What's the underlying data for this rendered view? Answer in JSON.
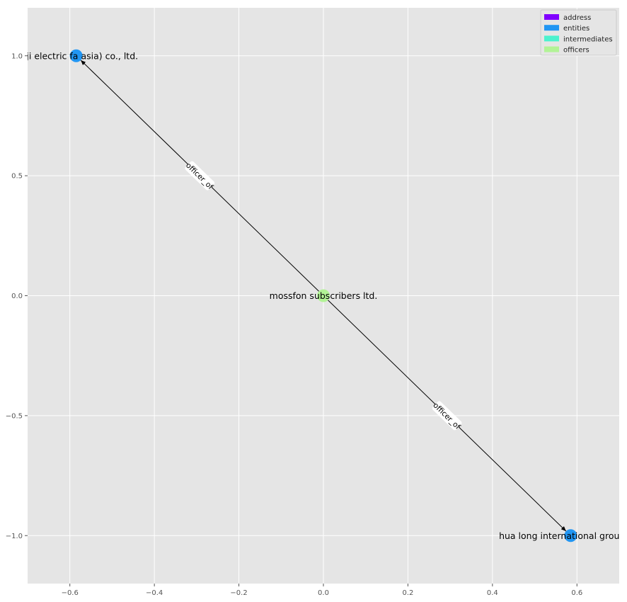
{
  "chart_data": {
    "type": "network",
    "title": "",
    "xlabel": "",
    "ylabel": "",
    "xlim": [
      -0.7,
      0.7
    ],
    "ylim": [
      -1.2,
      1.2
    ],
    "grid": true,
    "x_ticks": [
      -0.6,
      -0.4,
      -0.2,
      0.0,
      0.2,
      0.4,
      0.6
    ],
    "y_ticks": [
      1.0,
      0.5,
      0.0,
      -0.5,
      -1.0
    ],
    "x_tick_labels": [
      "−0.6",
      "−0.4",
      "−0.2",
      "0.0",
      "0.2",
      "0.4",
      "0.6"
    ],
    "y_tick_labels": [
      "1.0",
      "0.5",
      "0.0",
      "−0.5",
      "−1.0"
    ],
    "legend_position": "top-right",
    "legend": [
      {
        "label": "address",
        "color": "#8000ff"
      },
      {
        "label": "entities",
        "color": "#2196f3"
      },
      {
        "label": "intermediates",
        "color": "#4cf2ce"
      },
      {
        "label": "officers",
        "color": "#b2f396"
      }
    ],
    "nodes": [
      {
        "id": "n1",
        "label": "(fuji electric fa asia) co., ltd.",
        "x": -0.585,
        "y": 1.0,
        "category": "entities",
        "color": "#2196f3"
      },
      {
        "id": "n2",
        "label": "mossfon subscribers ltd.",
        "x": 0.0,
        "y": 0.0,
        "category": "officers",
        "color": "#b2f396"
      },
      {
        "id": "n3",
        "label": "hua long international group ltd.",
        "x": 0.585,
        "y": -1.0,
        "category": "entities",
        "color": "#2196f3"
      }
    ],
    "edges": [
      {
        "source": "n2",
        "target": "n1",
        "label": "officer_of"
      },
      {
        "source": "n2",
        "target": "n3",
        "label": "officer_of"
      }
    ]
  }
}
